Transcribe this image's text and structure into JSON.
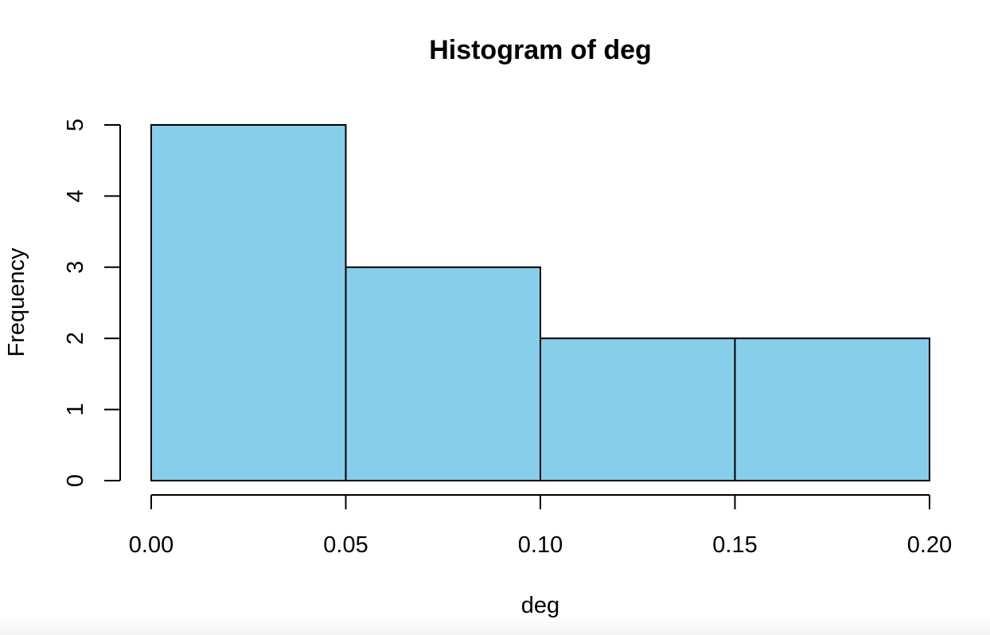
{
  "chart_data": {
    "type": "bar",
    "title": "Histogram of deg",
    "xlabel": "deg",
    "ylabel": "Frequency",
    "bins": [
      {
        "from": 0.0,
        "to": 0.05,
        "count": 5
      },
      {
        "from": 0.05,
        "to": 0.1,
        "count": 3
      },
      {
        "from": 0.1,
        "to": 0.15,
        "count": 2
      },
      {
        "from": 0.15,
        "to": 0.2,
        "count": 2
      }
    ],
    "xlim": [
      0.0,
      0.2
    ],
    "ylim": [
      0,
      5
    ],
    "x_ticks": [
      "0.00",
      "0.05",
      "0.10",
      "0.15",
      "0.20"
    ],
    "y_ticks": [
      "0",
      "1",
      "2",
      "3",
      "4",
      "5"
    ],
    "bar_color": "#87ceeb",
    "grid": false
  }
}
